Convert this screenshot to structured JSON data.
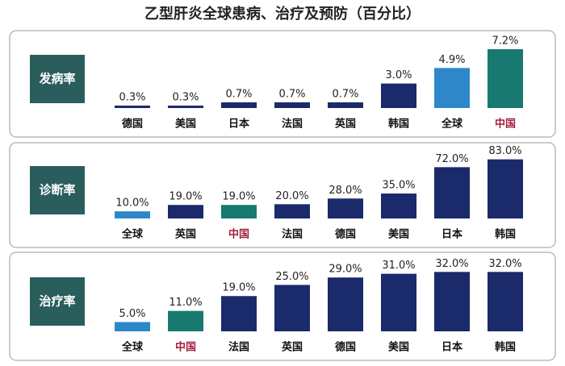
{
  "title": "乙型肝炎全球患病、治疗及预防（百分比）",
  "chart_data": [
    {
      "type": "bar",
      "title": "发病率",
      "categories": [
        "德国",
        "美国",
        "日本",
        "法国",
        "英国",
        "韩国",
        "全球",
        "中国"
      ],
      "values": [
        0.3,
        0.3,
        0.7,
        0.7,
        0.7,
        3.0,
        4.9,
        7.2
      ],
      "value_labels": [
        "0.3%",
        "0.3%",
        "0.7%",
        "0.7%",
        "0.7%",
        "3.0%",
        "4.9%",
        "7.2%"
      ],
      "colors": [
        "#1b2a6b",
        "#1b2a6b",
        "#1b2a6b",
        "#1b2a6b",
        "#1b2a6b",
        "#1b2a6b",
        "#2d87c9",
        "#17796f"
      ],
      "category_colors": [
        "#111",
        "#111",
        "#111",
        "#111",
        "#111",
        "#111",
        "#111",
        "#a3203d"
      ],
      "ylim": [
        0,
        7.5
      ]
    },
    {
      "type": "bar",
      "title": "诊断率",
      "categories": [
        "全球",
        "英国",
        "中国",
        "法国",
        "德国",
        "美国",
        "日本",
        "韩国"
      ],
      "values": [
        10.0,
        19.0,
        19.0,
        20.0,
        28.0,
        35.0,
        72.0,
        83.0
      ],
      "value_labels": [
        "10.0%",
        "19.0%",
        "19.0%",
        "20.0%",
        "28.0%",
        "35.0%",
        "72.0%",
        "83.0%"
      ],
      "colors": [
        "#2d87c9",
        "#1b2a6b",
        "#17796f",
        "#1b2a6b",
        "#1b2a6b",
        "#1b2a6b",
        "#1b2a6b",
        "#1b2a6b"
      ],
      "category_colors": [
        "#111",
        "#111",
        "#a3203d",
        "#111",
        "#111",
        "#111",
        "#111",
        "#111"
      ],
      "ylim": [
        0,
        86
      ]
    },
    {
      "type": "bar",
      "title": "治疗率",
      "categories": [
        "全球",
        "中国",
        "法国",
        "英国",
        "德国",
        "美国",
        "日本",
        "韩国"
      ],
      "values": [
        5.0,
        11.0,
        19.0,
        25.0,
        29.0,
        31.0,
        32.0,
        32.0
      ],
      "value_labels": [
        "5.0%",
        "11.0%",
        "19.0%",
        "25.0%",
        "29.0%",
        "31.0%",
        "32.0%",
        "32.0%"
      ],
      "colors": [
        "#2d87c9",
        "#17796f",
        "#1b2a6b",
        "#1b2a6b",
        "#1b2a6b",
        "#1b2a6b",
        "#1b2a6b",
        "#1b2a6b"
      ],
      "category_colors": [
        "#111",
        "#a3203d",
        "#111",
        "#111",
        "#111",
        "#111",
        "#111",
        "#111"
      ],
      "ylim": [
        0,
        33
      ]
    }
  ]
}
